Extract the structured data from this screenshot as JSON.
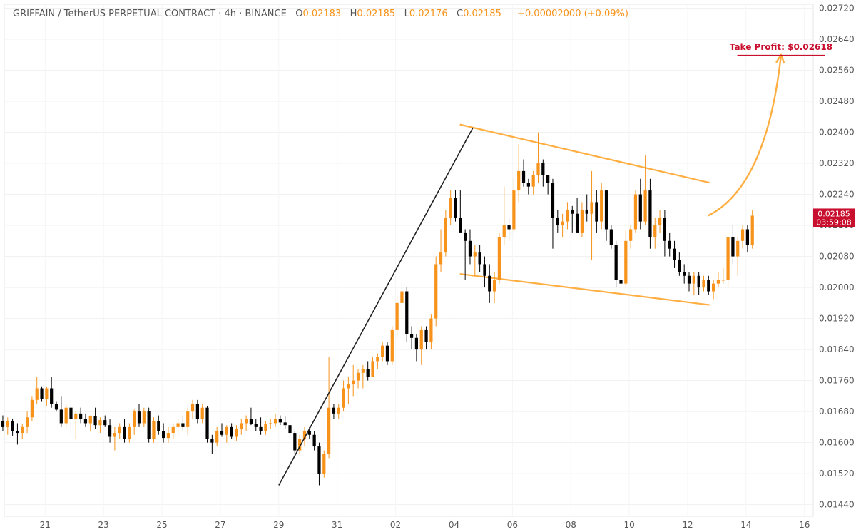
{
  "header": {
    "symbol": "GRIFFAIN / TetherUS PERPETUAL CONTRACT · 4h · BINANCE",
    "open_label": "O",
    "open": "0.02183",
    "high_label": "H",
    "high": "0.02185",
    "low_label": "L",
    "low": "0.02176",
    "close_label": "C",
    "close": "0.02185",
    "change": "+0.00002000 (+0.09%)"
  },
  "price_tag": {
    "price": "0.02185",
    "countdown": "03:59:08"
  },
  "take_profit": {
    "label": "Take Profit: $0.02618",
    "value": 0.02618
  },
  "colors": {
    "up": "#f7931a",
    "down": "#000000",
    "channel": "#ffae42",
    "impulse": "#222222",
    "tp": "#c8102e",
    "tag": "#c8102e",
    "grid": "#e6e6e6",
    "axis_text": "#555555"
  },
  "chart_data": {
    "type": "candlestick",
    "timeframe": "4h",
    "y_ticks": [
      "0.02720",
      "0.02640",
      "0.02560",
      "0.02480",
      "0.02400",
      "0.02320",
      "0.02240",
      "0.02160",
      "0.02080",
      "0.02000",
      "0.01920",
      "0.01840",
      "0.01760",
      "0.01680",
      "0.01600",
      "0.01520",
      "0.01440"
    ],
    "ylim": [
      0.0141,
      0.0273
    ],
    "x_ticks": [
      {
        "label": "21",
        "day": 0
      },
      {
        "label": "23",
        "day": 2
      },
      {
        "label": "25",
        "day": 4
      },
      {
        "label": "27",
        "day": 6
      },
      {
        "label": "29",
        "day": 8
      },
      {
        "label": "31",
        "day": 10
      },
      {
        "label": "02",
        "day": 12
      },
      {
        "label": "04",
        "day": 14
      },
      {
        "label": "06",
        "day": 16
      },
      {
        "label": "08",
        "day": 18
      },
      {
        "label": "10",
        "day": 20
      },
      {
        "label": "12",
        "day": 22
      },
      {
        "label": "14",
        "day": 24
      },
      {
        "label": "16",
        "day": 26
      }
    ],
    "xlim_days": [
      -1.4,
      26.3
    ],
    "candles_start_day": -1.45,
    "candles_per_day": 6,
    "candles": [
      [
        0.01655,
        0.0167,
        0.0163,
        0.0164
      ],
      [
        0.0164,
        0.01665,
        0.0162,
        0.01655
      ],
      [
        0.01655,
        0.01662,
        0.01618,
        0.0163
      ],
      [
        0.0163,
        0.0165,
        0.01595,
        0.01625
      ],
      [
        0.01625,
        0.01648,
        0.0161,
        0.0164
      ],
      [
        0.0164,
        0.0168,
        0.01625,
        0.01665
      ],
      [
        0.01665,
        0.0172,
        0.01655,
        0.0171
      ],
      [
        0.0171,
        0.0177,
        0.017,
        0.0174
      ],
      [
        0.0174,
        0.01745,
        0.01705,
        0.01712
      ],
      [
        0.01712,
        0.01745,
        0.01695,
        0.0174
      ],
      [
        0.0174,
        0.0177,
        0.0169,
        0.017
      ],
      [
        0.017,
        0.01705,
        0.0168,
        0.01685
      ],
      [
        0.01685,
        0.0172,
        0.0164,
        0.0165
      ],
      [
        0.0165,
        0.017,
        0.0164,
        0.0169
      ],
      [
        0.0169,
        0.0171,
        0.0162,
        0.0166
      ],
      [
        0.0166,
        0.0168,
        0.0161,
        0.01675
      ],
      [
        0.01675,
        0.0169,
        0.0165,
        0.0166
      ],
      [
        0.0166,
        0.01675,
        0.0164,
        0.0165
      ],
      [
        0.0165,
        0.0167,
        0.0163,
        0.01668
      ],
      [
        0.01668,
        0.0169,
        0.01635,
        0.01645
      ],
      [
        0.01645,
        0.01665,
        0.01625,
        0.01658
      ],
      [
        0.01658,
        0.0167,
        0.0164,
        0.01645
      ],
      [
        0.01645,
        0.0166,
        0.016,
        0.01615
      ],
      [
        0.01615,
        0.0164,
        0.0158,
        0.01625
      ],
      [
        0.01625,
        0.0165,
        0.0161,
        0.0164
      ],
      [
        0.0164,
        0.0166,
        0.016,
        0.0161
      ],
      [
        0.0161,
        0.0165,
        0.016,
        0.0164
      ],
      [
        0.0164,
        0.01685,
        0.0162,
        0.0168
      ],
      [
        0.0168,
        0.017,
        0.0164,
        0.0165
      ],
      [
        0.0165,
        0.0169,
        0.0164,
        0.01682
      ],
      [
        0.01682,
        0.0169,
        0.016,
        0.0161
      ],
      [
        0.0161,
        0.01665,
        0.016,
        0.01655
      ],
      [
        0.01655,
        0.0167,
        0.0162,
        0.0163
      ],
      [
        0.0163,
        0.0165,
        0.016,
        0.01612
      ],
      [
        0.01612,
        0.0164,
        0.016,
        0.01625
      ],
      [
        0.01625,
        0.0165,
        0.0161,
        0.0164
      ],
      [
        0.0164,
        0.0166,
        0.0162,
        0.0165
      ],
      [
        0.0165,
        0.0167,
        0.0163,
        0.0164
      ],
      [
        0.0164,
        0.0169,
        0.0162,
        0.0168
      ],
      [
        0.0168,
        0.0171,
        0.0166,
        0.017
      ],
      [
        0.017,
        0.0171,
        0.0165,
        0.0166
      ],
      [
        0.0166,
        0.017,
        0.0165,
        0.0169
      ],
      [
        0.0169,
        0.01695,
        0.016,
        0.0161
      ],
      [
        0.0161,
        0.0162,
        0.0157,
        0.016
      ],
      [
        0.016,
        0.0164,
        0.0159,
        0.0163
      ],
      [
        0.0163,
        0.0165,
        0.01615,
        0.0162
      ],
      [
        0.0162,
        0.01645,
        0.016,
        0.0164
      ],
      [
        0.0164,
        0.0165,
        0.0161,
        0.01615
      ],
      [
        0.01615,
        0.01645,
        0.01605,
        0.01635
      ],
      [
        0.01635,
        0.0166,
        0.0162,
        0.0165
      ],
      [
        0.0165,
        0.0167,
        0.0163,
        0.0166
      ],
      [
        0.0166,
        0.0169,
        0.01645,
        0.01648
      ],
      [
        0.01648,
        0.0166,
        0.0163,
        0.0164
      ],
      [
        0.0164,
        0.01665,
        0.0162,
        0.0163
      ],
      [
        0.0163,
        0.01655,
        0.0162,
        0.01648
      ],
      [
        0.01648,
        0.0166,
        0.01635,
        0.0165
      ],
      [
        0.0165,
        0.01675,
        0.0164,
        0.0166
      ],
      [
        0.0166,
        0.0167,
        0.01645,
        0.01652
      ],
      [
        0.01652,
        0.01668,
        0.01635,
        0.01645
      ],
      [
        0.01645,
        0.0166,
        0.01615,
        0.01625
      ],
      [
        0.01625,
        0.0163,
        0.0157,
        0.0158
      ],
      [
        0.0158,
        0.0162,
        0.0157,
        0.0161
      ],
      [
        0.0161,
        0.0164,
        0.0159,
        0.0163
      ],
      [
        0.0163,
        0.0164,
        0.0161,
        0.0162
      ],
      [
        0.0162,
        0.0163,
        0.0158,
        0.0159
      ],
      [
        0.0159,
        0.016,
        0.0149,
        0.0152
      ],
      [
        0.0152,
        0.0158,
        0.0151,
        0.0157
      ],
      [
        0.0157,
        0.0182,
        0.0156,
        0.0169
      ],
      [
        0.0169,
        0.017,
        0.0166,
        0.01675
      ],
      [
        0.01675,
        0.017,
        0.0166,
        0.0169
      ],
      [
        0.0169,
        0.0176,
        0.0168,
        0.0174
      ],
      [
        0.0174,
        0.0177,
        0.017,
        0.0175
      ],
      [
        0.0175,
        0.018,
        0.0172,
        0.0176
      ],
      [
        0.0176,
        0.0179,
        0.0174,
        0.0178
      ],
      [
        0.0178,
        0.018,
        0.0174,
        0.0179
      ],
      [
        0.0179,
        0.0181,
        0.0176,
        0.0177
      ],
      [
        0.0177,
        0.0182,
        0.0177,
        0.0181
      ],
      [
        0.0181,
        0.0183,
        0.0179,
        0.0182
      ],
      [
        0.0182,
        0.0186,
        0.0181,
        0.0185
      ],
      [
        0.0185,
        0.0186,
        0.018,
        0.0181
      ],
      [
        0.0181,
        0.019,
        0.018,
        0.0189
      ],
      [
        0.0189,
        0.0198,
        0.0187,
        0.0196
      ],
      [
        0.0196,
        0.0201,
        0.0192,
        0.0199
      ],
      [
        0.0199,
        0.02,
        0.0186,
        0.0188
      ],
      [
        0.0188,
        0.019,
        0.0184,
        0.0187
      ],
      [
        0.0187,
        0.0188,
        0.0181,
        0.0184
      ],
      [
        0.0184,
        0.019,
        0.018,
        0.0189
      ],
      [
        0.0189,
        0.019,
        0.0184,
        0.0186
      ],
      [
        0.0186,
        0.0193,
        0.0184,
        0.0192
      ],
      [
        0.0192,
        0.0208,
        0.019,
        0.0206
      ],
      [
        0.0206,
        0.0215,
        0.0204,
        0.0209
      ],
      [
        0.0209,
        0.022,
        0.0208,
        0.0218
      ],
      [
        0.0218,
        0.0225,
        0.0216,
        0.0223
      ],
      [
        0.0223,
        0.0225,
        0.0217,
        0.0218
      ],
      [
        0.0218,
        0.0225,
        0.0215,
        0.0214
      ],
      [
        0.0214,
        0.0215,
        0.0202,
        0.0212
      ],
      [
        0.0212,
        0.0215,
        0.0206,
        0.0208
      ],
      [
        0.0208,
        0.0211,
        0.0203,
        0.0209
      ],
      [
        0.0209,
        0.0211,
        0.0204,
        0.0206
      ],
      [
        0.0206,
        0.0208,
        0.02,
        0.0203
      ],
      [
        0.0203,
        0.0206,
        0.0196,
        0.0199
      ],
      [
        0.0199,
        0.0204,
        0.0196,
        0.0202
      ],
      [
        0.0202,
        0.0214,
        0.0201,
        0.0213
      ],
      [
        0.0213,
        0.0226,
        0.0211,
        0.0216
      ],
      [
        0.0216,
        0.0218,
        0.0212,
        0.0215
      ],
      [
        0.0215,
        0.0228,
        0.0214,
        0.0225
      ],
      [
        0.0225,
        0.0237,
        0.0222,
        0.023
      ],
      [
        0.023,
        0.0233,
        0.0226,
        0.0227
      ],
      [
        0.0227,
        0.0228,
        0.0224,
        0.0226
      ],
      [
        0.0226,
        0.023,
        0.0224,
        0.0229
      ],
      [
        0.0229,
        0.024,
        0.0227,
        0.0232
      ],
      [
        0.0232,
        0.0233,
        0.0226,
        0.0229
      ],
      [
        0.0229,
        0.0229,
        0.0224,
        0.0227
      ],
      [
        0.0227,
        0.0228,
        0.021,
        0.0218
      ],
      [
        0.0218,
        0.022,
        0.0214,
        0.0216
      ],
      [
        0.0216,
        0.0219,
        0.0213,
        0.0217
      ],
      [
        0.0217,
        0.0222,
        0.0215,
        0.022
      ],
      [
        0.022,
        0.0221,
        0.0214,
        0.0219
      ],
      [
        0.0219,
        0.0223,
        0.0214,
        0.0214
      ],
      [
        0.0214,
        0.0222,
        0.0213,
        0.022
      ],
      [
        0.022,
        0.0224,
        0.0217,
        0.0219
      ],
      [
        0.0219,
        0.023,
        0.0207,
        0.0222
      ],
      [
        0.0222,
        0.0225,
        0.0214,
        0.0217
      ],
      [
        0.0217,
        0.0227,
        0.0215,
        0.0225
      ],
      [
        0.0225,
        0.0225,
        0.0212,
        0.0215
      ],
      [
        0.0215,
        0.0216,
        0.021,
        0.0211
      ],
      [
        0.0211,
        0.0212,
        0.02,
        0.0202
      ],
      [
        0.0202,
        0.0205,
        0.02,
        0.0201
      ],
      [
        0.0201,
        0.0215,
        0.02,
        0.0212
      ],
      [
        0.0212,
        0.0216,
        0.021,
        0.0215
      ],
      [
        0.0215,
        0.0225,
        0.0214,
        0.0224
      ],
      [
        0.0224,
        0.0228,
        0.0215,
        0.0217
      ],
      [
        0.0217,
        0.0234,
        0.0216,
        0.0225
      ],
      [
        0.0225,
        0.0228,
        0.021,
        0.0213
      ],
      [
        0.0213,
        0.0218,
        0.021,
        0.0216
      ],
      [
        0.0216,
        0.022,
        0.0214,
        0.0218
      ],
      [
        0.0218,
        0.022,
        0.0208,
        0.0212
      ],
      [
        0.0212,
        0.0214,
        0.0208,
        0.021
      ],
      [
        0.021,
        0.0212,
        0.0205,
        0.0207
      ],
      [
        0.0207,
        0.0209,
        0.0203,
        0.0204
      ],
      [
        0.0204,
        0.0206,
        0.0201,
        0.0203
      ],
      [
        0.0203,
        0.0204,
        0.0199,
        0.0201
      ],
      [
        0.0201,
        0.0204,
        0.0198,
        0.0203
      ],
      [
        0.0203,
        0.0204,
        0.0198,
        0.02
      ],
      [
        0.02,
        0.0203,
        0.0199,
        0.0202
      ],
      [
        0.0202,
        0.0203,
        0.0198,
        0.0199
      ],
      [
        0.0199,
        0.0202,
        0.0197,
        0.0201
      ],
      [
        0.0201,
        0.0204,
        0.02,
        0.0202
      ],
      [
        0.0202,
        0.0205,
        0.0201,
        0.0202
      ],
      [
        0.0202,
        0.0213,
        0.02,
        0.0213
      ],
      [
        0.0213,
        0.0216,
        0.0206,
        0.0208
      ],
      [
        0.0208,
        0.0213,
        0.0203,
        0.0212
      ],
      [
        0.0212,
        0.0216,
        0.021,
        0.0215
      ],
      [
        0.0215,
        0.0216,
        0.0209,
        0.0211
      ],
      [
        0.0211,
        0.022,
        0.021,
        0.02185
      ]
    ],
    "annotations": {
      "impulse_line": [
        {
          "day": 8.0,
          "price": 0.0149
        },
        {
          "day": 14.65,
          "price": 0.02412
        }
      ],
      "channel_upper": [
        {
          "day": 14.2,
          "price": 0.0242
        },
        {
          "day": 22.75,
          "price": 0.0227
        }
      ],
      "channel_lower": [
        {
          "day": 14.2,
          "price": 0.02035
        },
        {
          "day": 22.75,
          "price": 0.01955
        }
      ],
      "projection_curve": {
        "start": {
          "day": 22.7,
          "price": 0.02185
        },
        "control": {
          "day": 24.7,
          "price": 0.0226
        },
        "end": {
          "day": 25.2,
          "price": 0.026
        }
      },
      "tp_line": {
        "day_start": 23.7,
        "day_end": 26.7,
        "price": 0.02618
      }
    }
  }
}
